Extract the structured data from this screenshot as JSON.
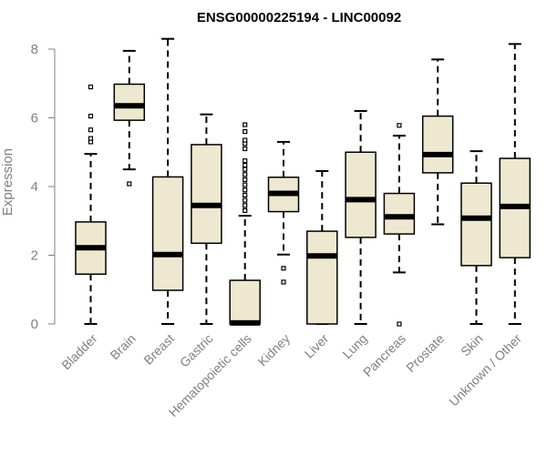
{
  "chart_data": {
    "type": "box",
    "title": "ENSG00000225194 - LINC00092",
    "ylabel": "Expression",
    "xlabel": "",
    "ylim": [
      0,
      8.2
    ],
    "yticks": [
      0,
      2,
      4,
      6,
      8
    ],
    "categories": [
      "Bladder",
      "Brain",
      "Breast",
      "Gastric",
      "Hematopoietic cells",
      "Kidney",
      "Liver",
      "Lung",
      "Pancreas",
      "Prostate",
      "Skin",
      "Unknown / Other"
    ],
    "boxes": [
      {
        "category": "Bladder",
        "whisker_low": 0,
        "q1": 1.45,
        "median": 2.22,
        "q3": 2.97,
        "whisker_high": 4.95,
        "outliers": [
          5.3,
          5.4,
          5.65,
          6.05,
          6.9
        ]
      },
      {
        "category": "Brain",
        "whisker_low": 4.5,
        "q1": 5.93,
        "median": 6.35,
        "q3": 6.98,
        "whisker_high": 7.95,
        "outliers": [
          4.08
        ]
      },
      {
        "category": "Breast",
        "whisker_low": 0,
        "q1": 0.98,
        "median": 2.02,
        "q3": 4.28,
        "whisker_high": 8.3,
        "outliers": []
      },
      {
        "category": "Gastric",
        "whisker_low": 0,
        "q1": 2.35,
        "median": 3.45,
        "q3": 5.22,
        "whisker_high": 6.1,
        "outliers": []
      },
      {
        "category": "Hematopoietic cells",
        "whisker_low": 0,
        "q1": 0,
        "median": 0.03,
        "q3": 1.27,
        "whisker_high": 3.15,
        "outliers": [
          3.3,
          3.45,
          3.6,
          3.75,
          3.9,
          4.05,
          4.2,
          4.35,
          4.5,
          4.62,
          4.75,
          5.1,
          5.25,
          5.35,
          5.6,
          5.8
        ]
      },
      {
        "category": "Kidney",
        "whisker_low": 2.02,
        "q1": 3.27,
        "median": 3.8,
        "q3": 4.27,
        "whisker_high": 5.3,
        "outliers": [
          1.22,
          1.62
        ]
      },
      {
        "category": "Liver",
        "whisker_low": 0,
        "q1": 0,
        "median": 1.98,
        "q3": 2.7,
        "whisker_high": 4.45,
        "outliers": []
      },
      {
        "category": "Lung",
        "whisker_low": 0,
        "q1": 2.52,
        "median": 3.62,
        "q3": 5.0,
        "whisker_high": 6.2,
        "outliers": []
      },
      {
        "category": "Pancreas",
        "whisker_low": 1.5,
        "q1": 2.62,
        "median": 3.12,
        "q3": 3.8,
        "whisker_high": 5.48,
        "outliers": [
          0,
          5.78
        ]
      },
      {
        "category": "Prostate",
        "whisker_low": 2.9,
        "q1": 4.4,
        "median": 4.93,
        "q3": 6.05,
        "whisker_high": 7.7,
        "outliers": []
      },
      {
        "category": "Skin",
        "whisker_low": 0,
        "q1": 1.7,
        "median": 3.08,
        "q3": 4.1,
        "whisker_high": 5.03,
        "outliers": []
      },
      {
        "category": "Unknown / Other",
        "whisker_low": 0,
        "q1": 1.93,
        "median": 3.42,
        "q3": 4.82,
        "whisker_high": 8.15,
        "outliers": []
      }
    ],
    "box_fill": "#EEE8D0",
    "box_stroke": "#000000",
    "axis_text_color": "#808080",
    "grid": false,
    "legend": "none"
  }
}
